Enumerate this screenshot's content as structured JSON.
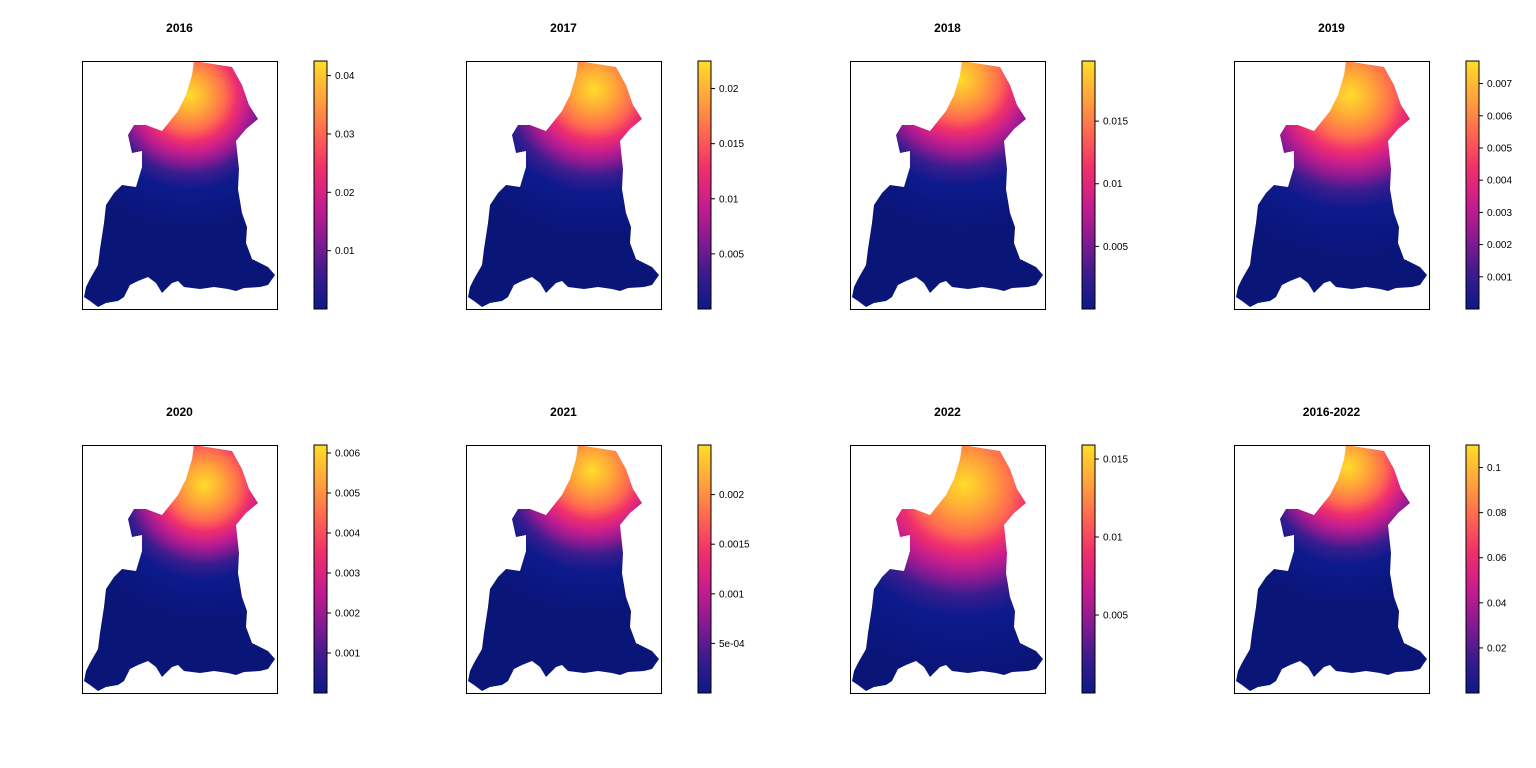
{
  "figure": {
    "colors": {
      "ramp": [
        "#0c1a8c",
        "#3a1c8e",
        "#8a1a92",
        "#c81e8c",
        "#f0306c",
        "#ff6a50",
        "#ffa638",
        "#ffdd2a"
      ],
      "background": "#ffffff",
      "frame": "#000000",
      "blank": "#ffffff"
    },
    "panels": [
      {
        "title": "2016",
        "ticks": [
          {
            "value": 0.01,
            "label": "0.01"
          },
          {
            "value": 0.02,
            "label": "0.02"
          },
          {
            "value": 0.03,
            "label": "0.03"
          },
          {
            "value": 0.04,
            "label": "0.04"
          }
        ],
        "min": 0.0,
        "max": 0.0425
      },
      {
        "title": "2017",
        "ticks": [
          {
            "value": 0.005,
            "label": "0.005"
          },
          {
            "value": 0.01,
            "label": "0.01"
          },
          {
            "value": 0.015,
            "label": "0.015"
          },
          {
            "value": 0.02,
            "label": "0.02"
          }
        ],
        "min": 0.0,
        "max": 0.0225
      },
      {
        "title": "2018",
        "ticks": [
          {
            "value": 0.005,
            "label": "0.005"
          },
          {
            "value": 0.01,
            "label": "0.01"
          },
          {
            "value": 0.015,
            "label": "0.015"
          }
        ],
        "min": 0.0,
        "max": 0.0198
      },
      {
        "title": "2019",
        "ticks": [
          {
            "value": 0.001,
            "label": "0.001"
          },
          {
            "value": 0.002,
            "label": "0.002"
          },
          {
            "value": 0.003,
            "label": "0.003"
          },
          {
            "value": 0.004,
            "label": "0.004"
          },
          {
            "value": 0.005,
            "label": "0.005"
          },
          {
            "value": 0.006,
            "label": "0.006"
          },
          {
            "value": 0.007,
            "label": "0.007"
          }
        ],
        "min": 0.0,
        "max": 0.0077
      },
      {
        "title": "2020",
        "ticks": [
          {
            "value": 0.001,
            "label": "0.001"
          },
          {
            "value": 0.002,
            "label": "0.002"
          },
          {
            "value": 0.003,
            "label": "0.003"
          },
          {
            "value": 0.004,
            "label": "0.004"
          },
          {
            "value": 0.005,
            "label": "0.005"
          },
          {
            "value": 0.006,
            "label": "0.006"
          }
        ],
        "min": 0.0,
        "max": 0.0062
      },
      {
        "title": "2021",
        "ticks": [
          {
            "value": 0.0005,
            "label": "5e-04"
          },
          {
            "value": 0.001,
            "label": "0.001"
          },
          {
            "value": 0.0015,
            "label": "0.0015"
          },
          {
            "value": 0.002,
            "label": "0.002"
          }
        ],
        "min": 0.0,
        "max": 0.0025
      },
      {
        "title": "2022",
        "ticks": [
          {
            "value": 0.005,
            "label": "0.005"
          },
          {
            "value": 0.01,
            "label": "0.01"
          },
          {
            "value": 0.015,
            "label": "0.015"
          }
        ],
        "min": 0.0,
        "max": 0.0159
      },
      {
        "title": "2016-2022",
        "ticks": [
          {
            "value": 0.02,
            "label": "0.02"
          },
          {
            "value": 0.04,
            "label": "0.04"
          },
          {
            "value": 0.06,
            "label": "0.06"
          },
          {
            "value": 0.08,
            "label": "0.08"
          },
          {
            "value": 0.1,
            "label": "0.1"
          }
        ],
        "min": 0.0,
        "max": 0.11
      }
    ]
  }
}
